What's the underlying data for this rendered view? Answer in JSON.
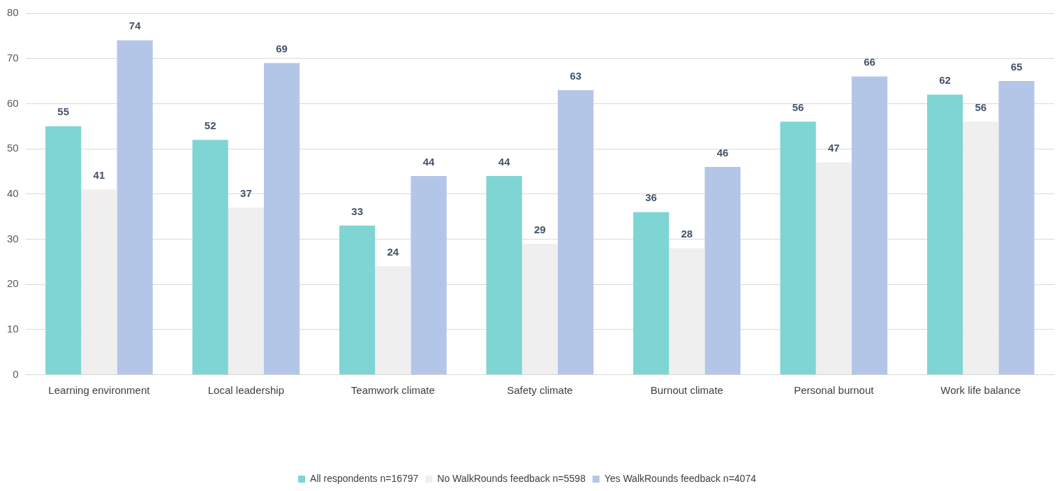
{
  "chart_data": {
    "type": "bar",
    "categories": [
      "Learning environment",
      "Local leadership",
      "Teamwork climate",
      "Safety climate",
      "Burnout climate",
      "Personal burnout",
      "Work life balance"
    ],
    "series": [
      {
        "name": "All respondents n=16797",
        "color": "#7fd5d3",
        "values": [
          55,
          52,
          33,
          44,
          36,
          56,
          62
        ]
      },
      {
        "name": "No WalkRounds feedback n=5598",
        "color": "#efefef",
        "values": [
          41,
          37,
          24,
          29,
          28,
          47,
          56
        ]
      },
      {
        "name": "Yes WalkRounds feedback n=4074",
        "color": "#b4c6e7",
        "values": [
          74,
          69,
          44,
          63,
          46,
          66,
          65
        ]
      }
    ],
    "ylim": [
      0,
      80
    ],
    "yticks": [
      0,
      10,
      20,
      30,
      40,
      50,
      60,
      70,
      80
    ],
    "grid": "y",
    "legend": "bottom",
    "data_labels": true
  }
}
